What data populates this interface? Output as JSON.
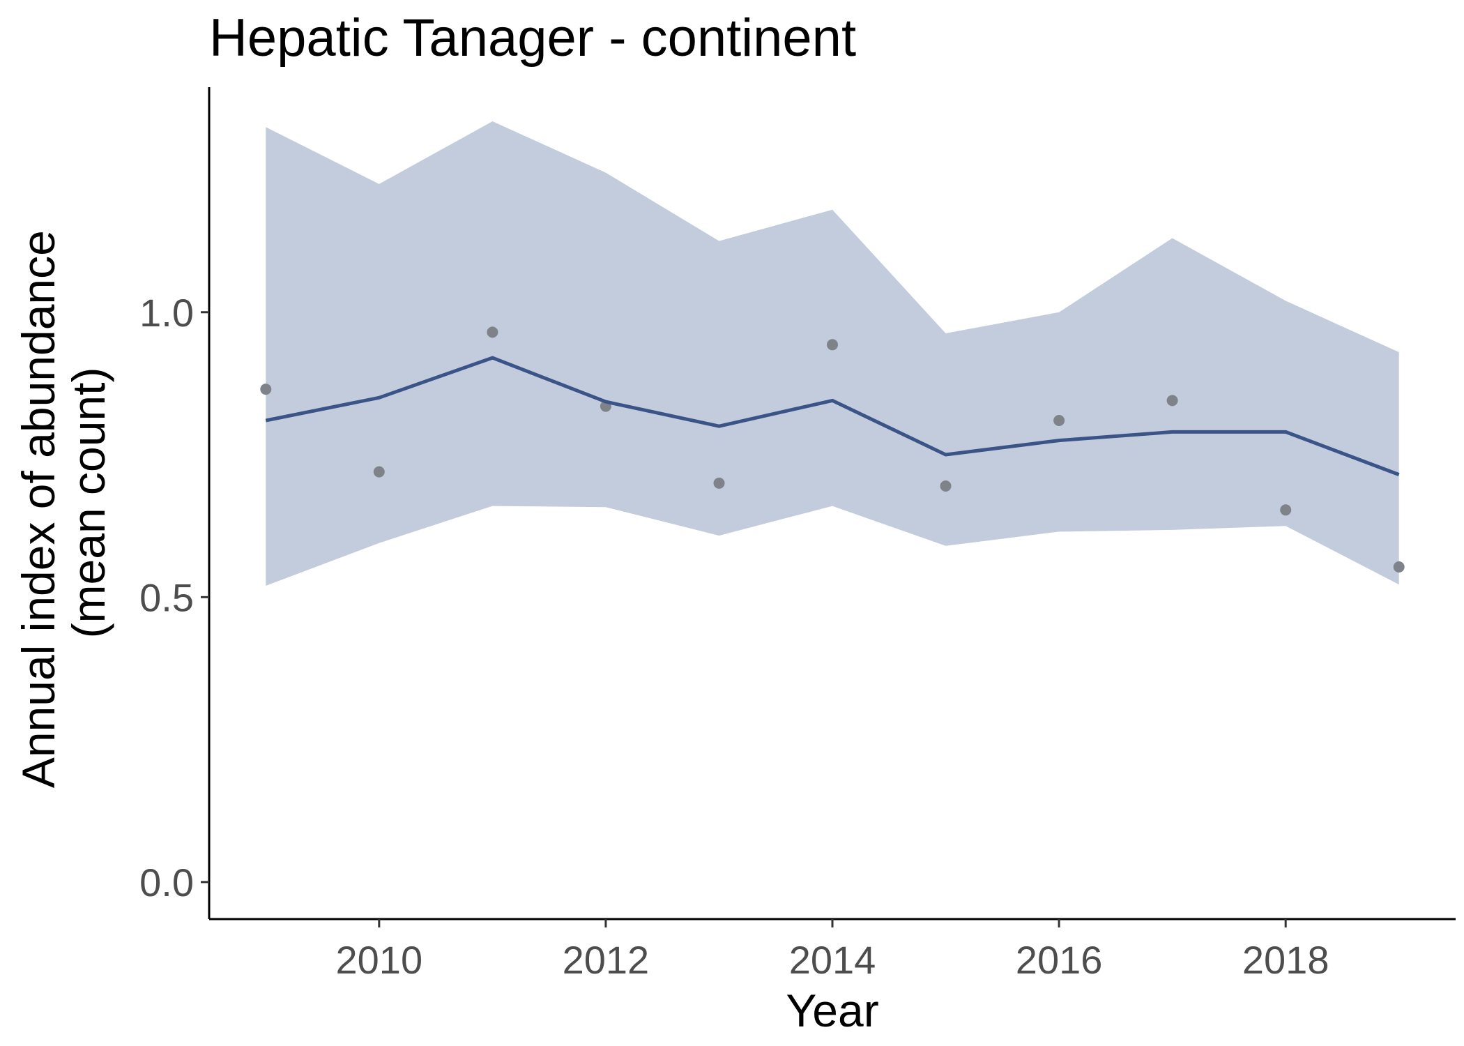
{
  "chart_data": {
    "type": "line",
    "title": "Hepatic Tanager - continent",
    "xlabel": "Year",
    "ylabel_lines": [
      "Annual index of abundance",
      "(mean count)"
    ],
    "x": [
      2009,
      2010,
      2011,
      2012,
      2013,
      2014,
      2015,
      2016,
      2017,
      2018,
      2019
    ],
    "x_ticks": [
      2010,
      2012,
      2014,
      2016,
      2018
    ],
    "y_ticks": [
      0.0,
      0.5,
      1.0
    ],
    "y_tick_labels": [
      "0.0",
      "0.5",
      "1.0"
    ],
    "xlim": [
      2008.5,
      2019.5
    ],
    "ylim": [
      -0.065,
      1.395
    ],
    "grid": false,
    "series": [
      {
        "role": "index",
        "values": [
          0.81,
          0.85,
          0.92,
          0.843,
          0.8,
          0.845,
          0.75,
          0.775,
          0.79,
          0.79,
          0.715
        ]
      },
      {
        "role": "ci_lower",
        "values": [
          0.52,
          0.595,
          0.66,
          0.658,
          0.608,
          0.66,
          0.59,
          0.615,
          0.618,
          0.625,
          0.522
        ]
      },
      {
        "role": "ci_upper",
        "values": [
          1.325,
          1.225,
          1.335,
          1.245,
          1.125,
          1.18,
          0.963,
          1.0,
          1.13,
          1.02,
          0.93
        ]
      },
      {
        "role": "observed_mean",
        "values": [
          0.865,
          0.72,
          0.965,
          0.835,
          0.7,
          0.943,
          0.695,
          0.81,
          0.845,
          0.653,
          0.553
        ]
      }
    ],
    "colors": {
      "line": "#3a5488",
      "ribbon": "#c3ccdc",
      "points": "#7f8289",
      "axis": "#000000"
    }
  }
}
